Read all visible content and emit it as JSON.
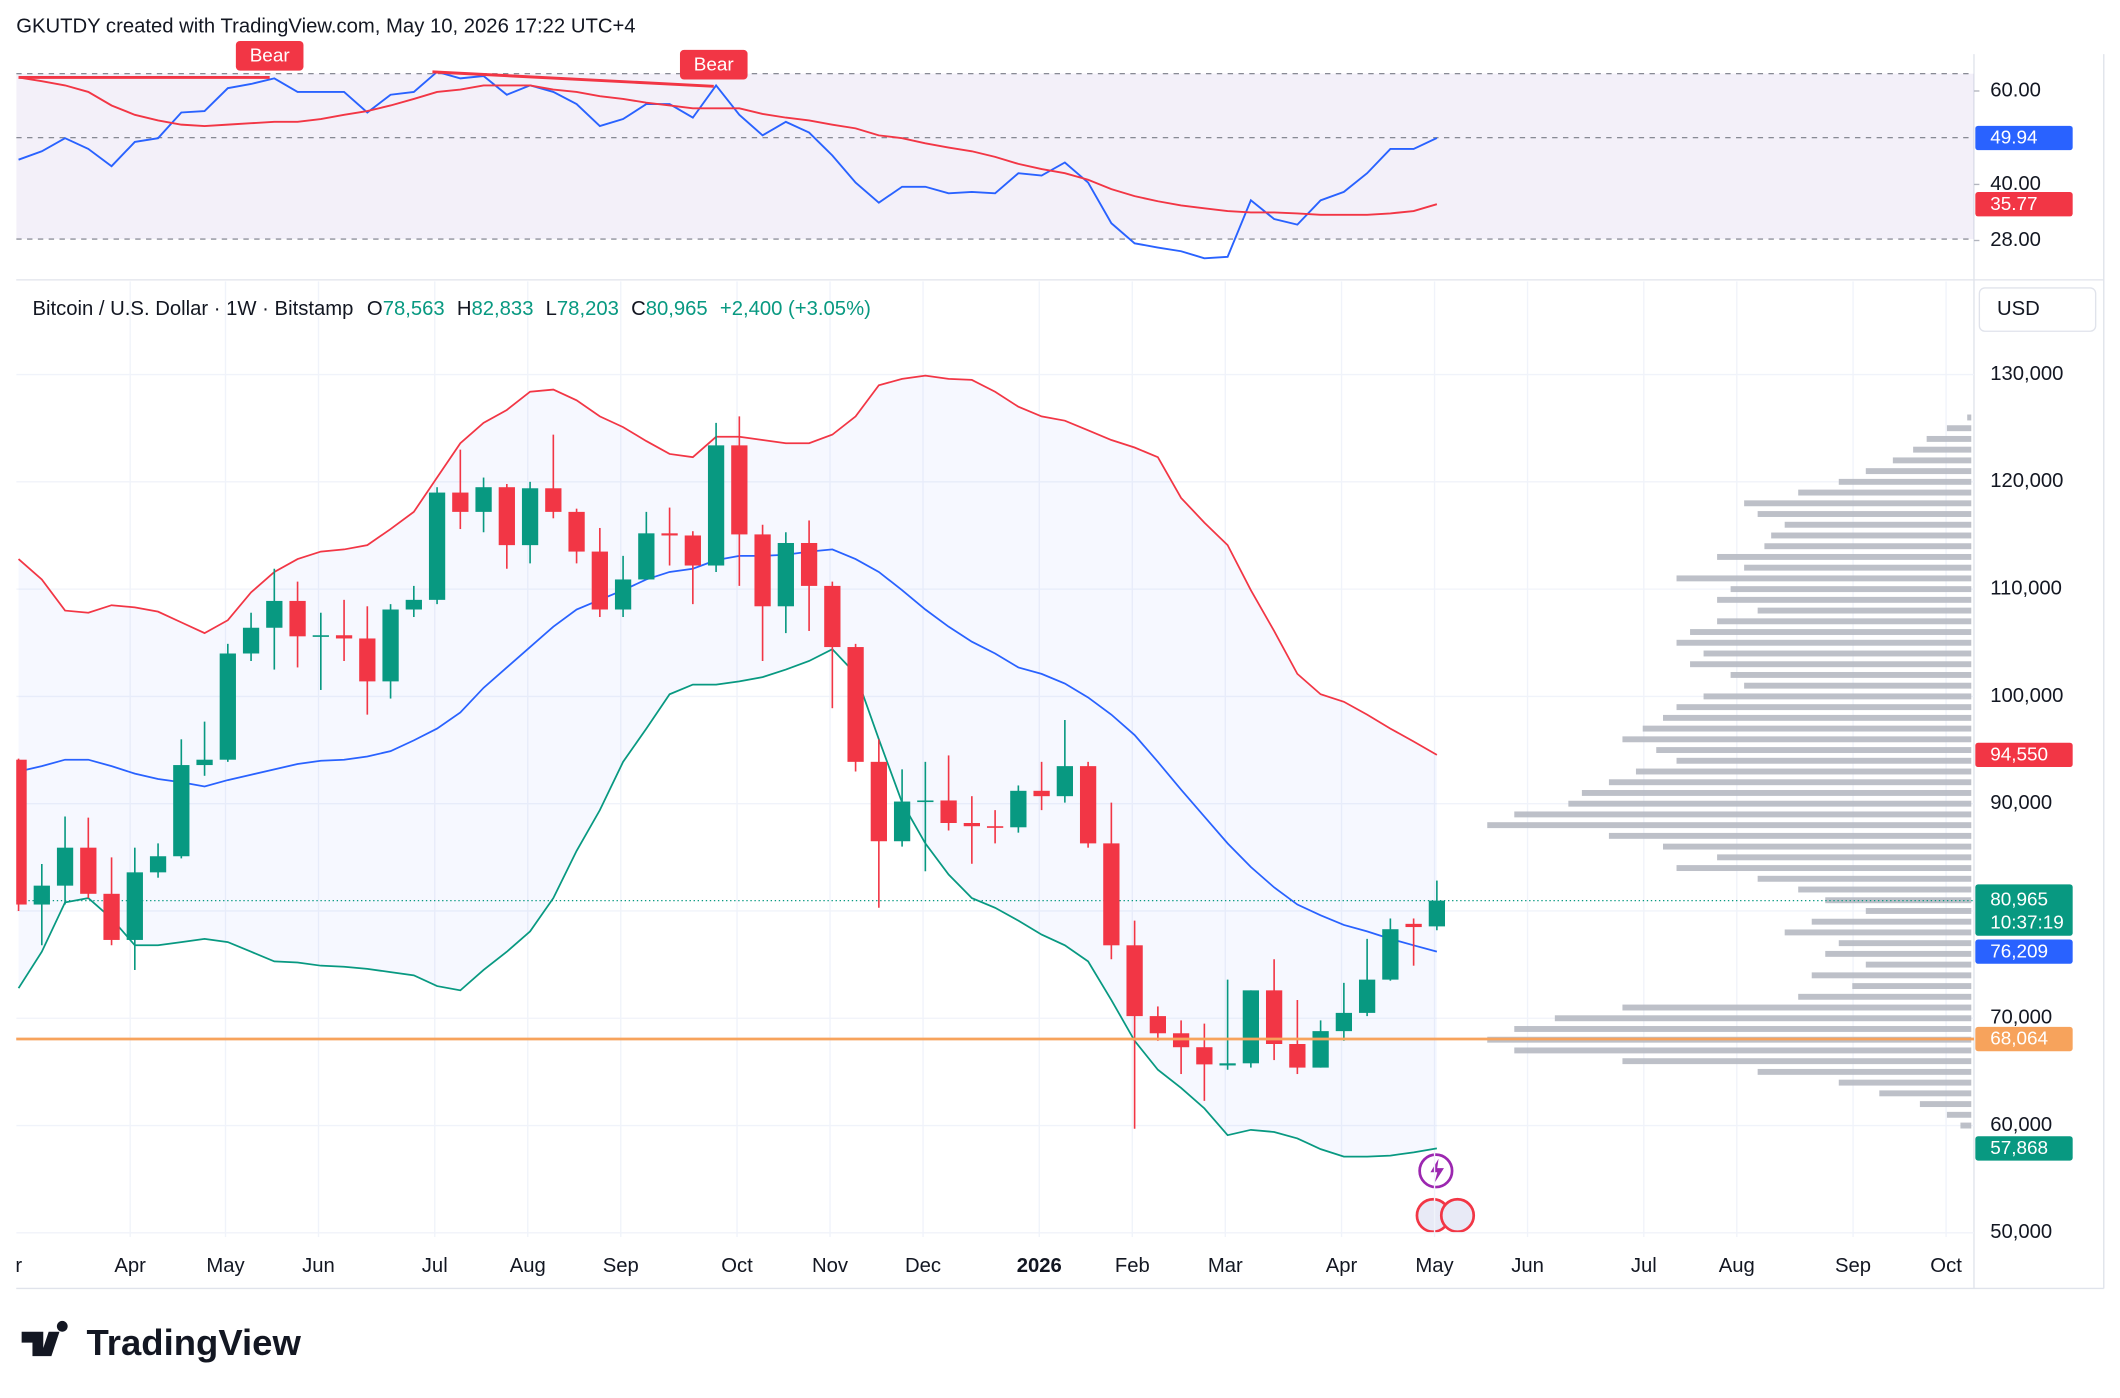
{
  "header": "GKUTDY created with TradingView.com, May 10, 2026 17:22 UTC+4",
  "brand": "TradingView",
  "chart_data": [
    {
      "type": "oscillator",
      "ylim": [
        21.6,
        67.9
      ],
      "yticks": [
        {
          "value": 28,
          "label": "28.00"
        },
        {
          "value": 40,
          "label": "40.00"
        },
        {
          "value": 60,
          "label": "60.00"
        }
      ],
      "levels": [
        28.3,
        50,
        63.7
      ],
      "band_color": "#7e57c2",
      "series": [
        {
          "color": "#2962ff",
          "last_label": "49.94",
          "values": [
            45.3,
            47.1,
            49.9,
            47.6,
            43.9,
            49.1,
            49.9,
            55.4,
            55.7,
            60.6,
            61.5,
            62.7,
            59.8,
            59.8,
            59.8,
            55.4,
            59.2,
            59.8,
            64.1,
            62.7,
            63.2,
            59.2,
            61.2,
            59.8,
            57.2,
            52.5,
            54.0,
            57.2,
            57.2,
            54.3,
            61.2,
            54.9,
            50.5,
            53.4,
            51.1,
            46.2,
            40.4,
            36.1,
            39.5,
            39.5,
            38.1,
            38.4,
            38.1,
            42.4,
            41.9,
            44.7,
            40.4,
            31.7,
            27.4,
            26.5,
            25.7,
            24.2,
            24.5,
            36.6,
            32.6,
            31.4,
            36.6,
            38.4,
            42.4,
            47.6,
            47.6,
            49.94
          ]
        },
        {
          "color": "#f23645",
          "last_label": "35.77",
          "values": [
            62.9,
            62.1,
            61.2,
            59.8,
            56.9,
            54.9,
            53.7,
            52.8,
            52.5,
            52.8,
            53.1,
            53.4,
            53.4,
            54.0,
            54.9,
            55.7,
            56.9,
            58.3,
            59.8,
            60.3,
            61.2,
            61.2,
            61.2,
            60.3,
            59.8,
            58.9,
            58.3,
            57.5,
            56.9,
            56.3,
            56.3,
            56.3,
            55.1,
            54.3,
            53.7,
            52.8,
            52.0,
            50.5,
            49.9,
            48.8,
            47.9,
            47.1,
            45.9,
            44.4,
            43.3,
            42.4,
            41.0,
            39.0,
            37.5,
            36.4,
            35.5,
            34.9,
            34.3,
            34.0,
            34.0,
            33.8,
            33.5,
            33.5,
            33.5,
            33.8,
            34.3,
            35.77
          ]
        }
      ],
      "annotations": [
        {
          "label": "Bear",
          "x": 10.8,
          "y": 62.9,
          "from_x": 0,
          "from_y": 62.9,
          "color": "#f23645"
        },
        {
          "label": "Bear",
          "x": 29.9,
          "y": 61.0,
          "from_x": 17.8,
          "from_y": 64.1,
          "color": "#f23645"
        }
      ]
    },
    {
      "type": "candlestick",
      "title": "Bitcoin / U.S. Dollar · 1W · Bitstamp",
      "legend": [
        {
          "key": "O",
          "value": "78,563"
        },
        {
          "key": "H",
          "value": "82,833"
        },
        {
          "key": "L",
          "value": "78,203"
        },
        {
          "key": "C",
          "value": "80,965"
        }
      ],
      "change": "+2,400 (+3.05%)",
      "currency": "USD",
      "color_up": "#089981",
      "color_down": "#f23645",
      "last_label": "80,965",
      "countdown": "10:37:19",
      "xlim": [
        -0.1,
        84.1
      ],
      "xticks": [
        {
          "value": -0.6,
          "label": "Mar"
        },
        {
          "value": 4.8,
          "label": "Apr"
        },
        {
          "value": 8.9,
          "label": "May"
        },
        {
          "value": 12.9,
          "label": "Jun"
        },
        {
          "value": 17.9,
          "label": "Jul"
        },
        {
          "value": 21.9,
          "label": "Aug"
        },
        {
          "value": 25.9,
          "label": "Sep"
        },
        {
          "value": 30.9,
          "label": "Oct"
        },
        {
          "value": 34.9,
          "label": "Nov"
        },
        {
          "value": 38.9,
          "label": "Dec"
        },
        {
          "value": 43.9,
          "label": "2026"
        },
        {
          "value": 47.9,
          "label": "Feb"
        },
        {
          "value": 51.9,
          "label": "Mar"
        },
        {
          "value": 56.9,
          "label": "Apr"
        },
        {
          "value": 60.9,
          "label": "May"
        },
        {
          "value": 64.9,
          "label": "Jun"
        },
        {
          "value": 69.9,
          "label": "Jul"
        },
        {
          "value": 73.9,
          "label": "Aug"
        },
        {
          "value": 78.9,
          "label": "Sep"
        },
        {
          "value": 82.9,
          "label": "Oct"
        }
      ],
      "ylim": [
        49600,
        138700
      ],
      "yticks": [
        {
          "value": 50000,
          "label": "50,000"
        },
        {
          "value": 60000,
          "label": "60,000"
        },
        {
          "value": 70000,
          "label": "70,000"
        },
        {
          "value": 80000,
          "label": "80,000"
        },
        {
          "value": 90000,
          "label": "90,000"
        },
        {
          "value": 100000,
          "label": "100,000"
        },
        {
          "value": 110000,
          "label": "110,000"
        },
        {
          "value": 120000,
          "label": "120,000"
        },
        {
          "value": 130000,
          "label": "130,000"
        }
      ],
      "x": [
        0,
        1,
        2,
        3,
        4,
        5,
        6,
        7,
        8,
        9,
        10,
        11,
        12,
        13,
        14,
        15,
        16,
        17,
        18,
        19,
        20,
        21,
        22,
        23,
        24,
        25,
        26,
        27,
        28,
        29,
        30,
        31,
        32,
        33,
        34,
        35,
        36,
        37,
        38,
        39,
        40,
        41,
        42,
        43,
        44,
        45,
        46,
        47,
        48,
        49,
        50,
        51,
        52,
        53,
        54,
        55,
        56,
        57,
        58,
        59,
        60,
        61
      ],
      "open": [
        94100,
        80600,
        82360,
        85900,
        81600,
        77300,
        83600,
        85100,
        93600,
        94100,
        104000,
        106400,
        108900,
        105600,
        105700,
        105400,
        101400,
        108100,
        109000,
        119000,
        117200,
        119500,
        114100,
        119400,
        117200,
        113500,
        108100,
        110900,
        115200,
        115000,
        112200,
        123400,
        115100,
        108400,
        114300,
        110300,
        104600,
        93900,
        86500,
        90200,
        90300,
        88200,
        87900,
        87800,
        91200,
        90700,
        93500,
        86300,
        76800,
        70200,
        68600,
        67300,
        65600,
        65800,
        72600,
        67600,
        65400,
        68800,
        70500,
        73600,
        78800,
        78563
      ],
      "high": [
        94200,
        84380,
        88800,
        88700,
        85000,
        85900,
        86300,
        96000,
        97650,
        104900,
        107800,
        111900,
        110700,
        107800,
        109000,
        108400,
        108600,
        110300,
        119500,
        123000,
        120400,
        119800,
        120000,
        124400,
        117500,
        115700,
        113100,
        117200,
        117600,
        115400,
        125500,
        126100,
        116000,
        115300,
        116400,
        110700,
        104900,
        96000,
        93200,
        93900,
        94500,
        90700,
        89400,
        91700,
        93900,
        97800,
        93900,
        90100,
        79100,
        71100,
        69800,
        69500,
        73600,
        72600,
        75500,
        71700,
        69800,
        73300,
        77400,
        79300,
        79300,
        82833
      ],
      "low": [
        80000,
        76800,
        80600,
        81200,
        76800,
        74500,
        83100,
        84900,
        92600,
        93900,
        103300,
        102500,
        102700,
        100600,
        103300,
        98300,
        99800,
        107400,
        108600,
        115600,
        115300,
        111900,
        112400,
        116600,
        112400,
        107400,
        107400,
        110900,
        112200,
        108600,
        111600,
        110300,
        103300,
        105900,
        106100,
        98900,
        93000,
        80300,
        86000,
        83700,
        87500,
        84400,
        86300,
        87300,
        89400,
        90100,
        85900,
        75500,
        59700,
        67900,
        64800,
        62300,
        65200,
        65400,
        66100,
        64800,
        65400,
        67900,
        70200,
        73500,
        74900,
        78203
      ],
      "close": [
        80600,
        82360,
        85900,
        81600,
        77300,
        83600,
        85100,
        93600,
        94100,
        104000,
        106400,
        108900,
        105600,
        105700,
        105400,
        101400,
        108100,
        109000,
        119000,
        117200,
        119500,
        114100,
        119400,
        117200,
        113500,
        108100,
        110900,
        115200,
        115000,
        112200,
        123400,
        115100,
        108400,
        114300,
        110300,
        104600,
        93900,
        86500,
        90200,
        90300,
        88200,
        87900,
        87800,
        91200,
        90700,
        93500,
        86300,
        76800,
        70200,
        68600,
        67300,
        65700,
        65800,
        72600,
        67600,
        65400,
        68800,
        70500,
        73600,
        78300,
        78500,
        80965
      ],
      "band_fill": "#2962ff",
      "overlays": [
        {
          "color": "#f23645",
          "last_label": "94,550",
          "values": [
            112800,
            110900,
            108000,
            107800,
            108500,
            108300,
            107900,
            106900,
            105900,
            107100,
            109700,
            111600,
            112800,
            113500,
            113700,
            114100,
            115600,
            117200,
            120400,
            123600,
            125500,
            126700,
            128400,
            128600,
            127600,
            126100,
            125100,
            123800,
            122600,
            122300,
            124200,
            124200,
            123900,
            123600,
            123600,
            124400,
            126100,
            129000,
            129600,
            129900,
            129600,
            129500,
            128400,
            127000,
            126100,
            125700,
            124800,
            123900,
            123200,
            122300,
            118500,
            116200,
            114100,
            109900,
            106100,
            102100,
            100200,
            99500,
            98300,
            97000,
            95800,
            94550
          ]
        },
        {
          "color": "#2962ff",
          "last_label": "76,209",
          "values": [
            93000,
            93500,
            94100,
            94100,
            93500,
            92800,
            92300,
            92000,
            91600,
            92200,
            92700,
            93200,
            93700,
            94000,
            94100,
            94400,
            94900,
            95900,
            97000,
            98500,
            100800,
            102700,
            104600,
            106500,
            108100,
            109000,
            109900,
            110900,
            111600,
            111900,
            112700,
            113100,
            113100,
            113200,
            113500,
            113700,
            112800,
            111600,
            109900,
            108100,
            106500,
            105100,
            104000,
            102700,
            102100,
            101200,
            99900,
            98300,
            96400,
            93900,
            91300,
            88800,
            86300,
            84100,
            82200,
            80600,
            79600,
            78700,
            78100,
            77400,
            76800,
            76209
          ]
        },
        {
          "color": "#089981",
          "last_label": "57,868",
          "values": [
            72800,
            76200,
            80800,
            81200,
            79300,
            76800,
            76800,
            77100,
            77400,
            77100,
            76200,
            75300,
            75200,
            74900,
            74800,
            74600,
            74300,
            74000,
            73000,
            72600,
            74500,
            76200,
            78100,
            81200,
            85600,
            89400,
            93900,
            97000,
            100200,
            101100,
            101100,
            101400,
            101800,
            102500,
            103300,
            104400,
            102100,
            96000,
            90100,
            86300,
            83400,
            81200,
            80300,
            79100,
            77800,
            76800,
            75300,
            71700,
            67900,
            65200,
            63500,
            61600,
            59100,
            59600,
            59400,
            58800,
            57800,
            57100,
            57100,
            57200,
            57500,
            57868
          ]
        }
      ],
      "hline": {
        "value": 68064,
        "label": "68,064",
        "color": "#f7a35c"
      },
      "volume_profile": {
        "color": "#b2b5be",
        "prices": [
          60000,
          61000,
          62000,
          63000,
          64000,
          65000,
          66000,
          67000,
          68000,
          69000,
          70000,
          71000,
          72000,
          73000,
          74000,
          75000,
          76000,
          77000,
          78000,
          79000,
          80000,
          81000,
          82000,
          83000,
          84000,
          85000,
          86000,
          87000,
          88000,
          89000,
          90000,
          91000,
          92000,
          93000,
          94000,
          95000,
          96000,
          97000,
          98000,
          99000,
          100000,
          101000,
          102000,
          103000,
          104000,
          105000,
          106000,
          107000,
          108000,
          109000,
          110000,
          111000,
          112000,
          113000,
          114000,
          115000,
          116000,
          117000,
          118000,
          119000,
          120000,
          121000,
          122000,
          123000,
          124000,
          125000,
          126000
        ],
        "values": [
          8,
          18,
          38,
          68,
          98,
          158,
          258,
          338,
          358,
          338,
          308,
          258,
          128,
          88,
          118,
          78,
          108,
          98,
          138,
          118,
          78,
          108,
          128,
          158,
          218,
          188,
          228,
          268,
          358,
          338,
          298,
          288,
          268,
          248,
          218,
          233,
          258,
          243,
          228,
          218,
          198,
          168,
          178,
          208,
          198,
          218,
          208,
          188,
          158,
          188,
          178,
          218,
          168,
          188,
          153,
          148,
          138,
          158,
          168,
          128,
          98,
          78,
          58,
          43,
          33,
          18,
          3
        ]
      }
    }
  ]
}
